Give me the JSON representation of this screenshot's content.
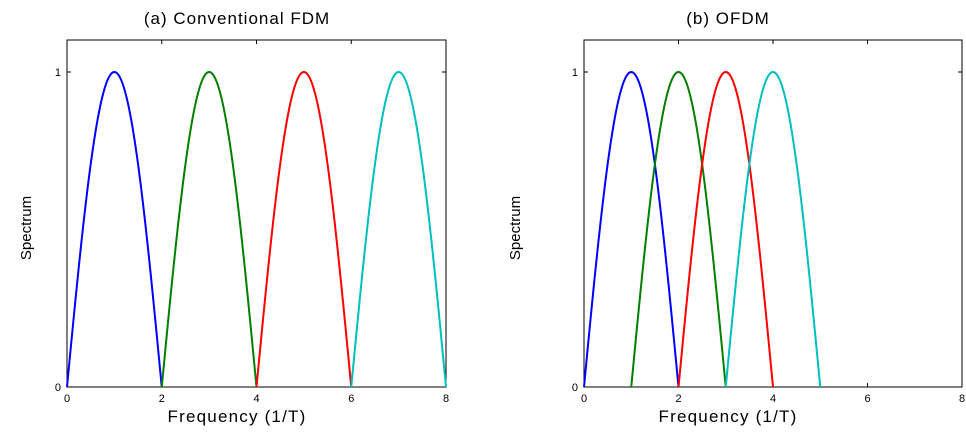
{
  "chart_data": [
    {
      "type": "line",
      "title": "(a) Conventional FDM",
      "xlabel": "Frequency (1/T)",
      "ylabel": "Spectrum",
      "xlim": [
        0,
        8
      ],
      "ylim": [
        0,
        1
      ],
      "x_ticks": [
        "0",
        "2",
        "4",
        "6",
        "8"
      ],
      "y_ticks": [
        "0",
        "1"
      ],
      "grid": false,
      "series": [
        {
          "color": "#0000ff",
          "x": [
            0,
            1,
            2
          ],
          "y": [
            0,
            1,
            0
          ],
          "shape": "half-sine"
        },
        {
          "color": "#007f00",
          "x": [
            2,
            3,
            4
          ],
          "y": [
            0,
            1,
            0
          ],
          "shape": "half-sine"
        },
        {
          "color": "#ff0000",
          "x": [
            4,
            5,
            6
          ],
          "y": [
            0,
            1,
            0
          ],
          "shape": "half-sine"
        },
        {
          "color": "#00bfbf",
          "x": [
            6,
            7,
            8
          ],
          "y": [
            0,
            1,
            0
          ],
          "shape": "half-sine"
        }
      ]
    },
    {
      "type": "line",
      "title": "(b) OFDM",
      "xlabel": "Frequency (1/T)",
      "ylabel": "Spectrum",
      "xlim": [
        0,
        8
      ],
      "ylim": [
        0,
        1
      ],
      "x_ticks": [
        "0",
        "2",
        "4",
        "6",
        "8"
      ],
      "y_ticks": [
        "0",
        "1"
      ],
      "grid": false,
      "series": [
        {
          "color": "#0000ff",
          "x": [
            0,
            1,
            2
          ],
          "y": [
            0,
            1,
            0
          ],
          "shape": "half-sine"
        },
        {
          "color": "#007f00",
          "x": [
            1,
            2,
            3
          ],
          "y": [
            0,
            1,
            0
          ],
          "shape": "half-sine"
        },
        {
          "color": "#ff0000",
          "x": [
            2,
            3,
            4
          ],
          "y": [
            0,
            1,
            0
          ],
          "shape": "half-sine"
        },
        {
          "color": "#00bfbf",
          "x": [
            3,
            4,
            5
          ],
          "y": [
            0,
            1,
            0
          ],
          "shape": "half-sine"
        }
      ]
    }
  ]
}
